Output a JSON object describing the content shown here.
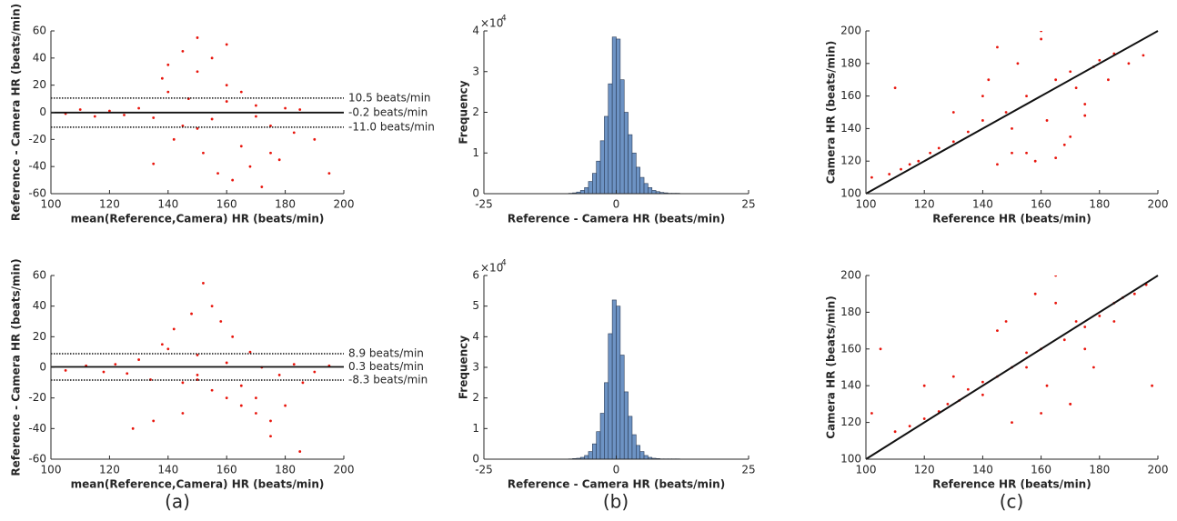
{
  "captions": [
    "(a)",
    "(b)",
    "(c)"
  ],
  "chart_data": [
    {
      "type": "scatter",
      "xlabel": "mean(Reference,Camera) HR (beats/min)",
      "ylabel": "Reference - Camera HR (beats/min)",
      "color": "#e8150c",
      "xlim": [
        100,
        200
      ],
      "ylim": [
        -60,
        60
      ],
      "xticks": [
        100,
        120,
        140,
        160,
        180,
        200
      ],
      "yticks": [
        -60,
        -40,
        -20,
        0,
        20,
        40,
        60
      ],
      "x": [
        105,
        110,
        115,
        120,
        125,
        130,
        135,
        138,
        140,
        142,
        145,
        147,
        150,
        152,
        155,
        157,
        160,
        162,
        165,
        168,
        170,
        172,
        175,
        178,
        180,
        183,
        185,
        190,
        195,
        135,
        145,
        150,
        155,
        160,
        165,
        170,
        140,
        150,
        160,
        175
      ],
      "y": [
        -1,
        2,
        -3,
        1,
        -2,
        3,
        -4,
        25,
        35,
        -20,
        45,
        10,
        55,
        -30,
        40,
        -45,
        20,
        -50,
        15,
        -40,
        5,
        -55,
        -10,
        -35,
        3,
        -15,
        2,
        -20,
        -45,
        -38,
        -10,
        30,
        -5,
        8,
        -25,
        -3,
        15,
        -12,
        50,
        -30
      ],
      "reference_lines": [
        {
          "value": 10.5,
          "label": "10.5  beats/min",
          "style": "dotted"
        },
        {
          "value": -0.2,
          "label": "-0.2  beats/min",
          "style": "solid"
        },
        {
          "value": -11.0,
          "label": "-11.0  beats/min",
          "style": "dotted"
        }
      ]
    },
    {
      "type": "histogram",
      "xlabel": "Reference - Camera HR (beats/min)",
      "ylabel": "Frequency",
      "color": "#6d93c4",
      "y_multiplier": "×10",
      "y_multiplier_exponent": "4",
      "xlim": [
        -25,
        25
      ],
      "ylim": [
        0,
        4
      ],
      "xticks": [
        -25,
        0,
        25
      ],
      "yticks": [
        0,
        1,
        2,
        3,
        4
      ],
      "bins": [
        -9,
        -8.25,
        -7.5,
        -6.75,
        -6,
        -5.25,
        -4.5,
        -3.75,
        -3,
        -2.25,
        -1.5,
        -0.75,
        0,
        0.75,
        1.5,
        2.25,
        3,
        3.75,
        4.5,
        5.25,
        6,
        6.75,
        7.5,
        8.25,
        9,
        9.75,
        10.5,
        11.25,
        12
      ],
      "counts": [
        0.01,
        0.02,
        0.04,
        0.08,
        0.15,
        0.3,
        0.5,
        0.8,
        1.3,
        1.9,
        2.7,
        3.85,
        3.8,
        2.8,
        2.0,
        1.45,
        1.0,
        0.65,
        0.4,
        0.25,
        0.15,
        0.08,
        0.05,
        0.03,
        0.02,
        0.01,
        0.01,
        0.01
      ]
    },
    {
      "type": "scatter",
      "xlabel": "Reference HR (beats/min)",
      "ylabel": "Camera HR (beats/min)",
      "color": "#e8150c",
      "identity_line": true,
      "xlim": [
        100,
        200
      ],
      "ylim": [
        100,
        200
      ],
      "xticks": [
        100,
        120,
        140,
        160,
        180,
        200
      ],
      "yticks": [
        100,
        120,
        140,
        160,
        180,
        200
      ],
      "x": [
        102,
        108,
        112,
        115,
        118,
        122,
        125,
        130,
        135,
        140,
        142,
        145,
        148,
        150,
        152,
        155,
        158,
        160,
        162,
        165,
        168,
        170,
        172,
        175,
        178,
        180,
        183,
        185,
        190,
        195,
        110,
        130,
        150,
        160,
        170,
        145,
        155,
        165,
        140,
        175
      ],
      "y": [
        110,
        112,
        115,
        118,
        120,
        125,
        128,
        132,
        138,
        145,
        170,
        190,
        150,
        125,
        180,
        160,
        120,
        195,
        145,
        170,
        130,
        175,
        165,
        155,
        178,
        182,
        170,
        186,
        180,
        185,
        165,
        150,
        140,
        200,
        135,
        118,
        125,
        122,
        160,
        148
      ]
    },
    {
      "type": "scatter",
      "xlabel": "mean(Reference,Camera) HR (beats/min)",
      "ylabel": "Reference - Camera HR (beats/min)",
      "color": "#e8150c",
      "xlim": [
        100,
        200
      ],
      "ylim": [
        -60,
        60
      ],
      "xticks": [
        100,
        120,
        140,
        160,
        180,
        200
      ],
      "yticks": [
        -60,
        -40,
        -20,
        0,
        20,
        40,
        60
      ],
      "x": [
        105,
        112,
        118,
        122,
        126,
        130,
        134,
        138,
        142,
        145,
        148,
        150,
        152,
        155,
        158,
        160,
        162,
        165,
        168,
        170,
        172,
        175,
        178,
        180,
        183,
        186,
        190,
        195,
        128,
        140,
        150,
        155,
        160,
        165,
        170,
        145,
        135,
        175,
        185,
        150
      ],
      "y": [
        -2,
        1,
        -3,
        2,
        -4,
        5,
        -8,
        15,
        25,
        -10,
        35,
        8,
        55,
        -15,
        30,
        -20,
        20,
        -25,
        10,
        -30,
        0,
        -35,
        -5,
        -25,
        2,
        -10,
        -3,
        1,
        -40,
        12,
        -5,
        40,
        3,
        -12,
        -20,
        -30,
        -35,
        -45,
        -55,
        -8
      ],
      "reference_lines": [
        {
          "value": 8.9,
          "label": "8.9  beats/min",
          "style": "dotted"
        },
        {
          "value": 0.3,
          "label": "0.3  beats/min",
          "style": "solid"
        },
        {
          "value": -8.3,
          "label": "-8.3  beats/min",
          "style": "dotted"
        }
      ]
    },
    {
      "type": "histogram",
      "xlabel": "Reference - Camera HR (beats/min)",
      "ylabel": "Frequency",
      "color": "#6d93c4",
      "y_multiplier": "×10",
      "y_multiplier_exponent": "4",
      "xlim": [
        -25,
        25
      ],
      "ylim": [
        0,
        6
      ],
      "xticks": [
        -25,
        0,
        25
      ],
      "yticks": [
        0,
        1,
        2,
        3,
        4,
        5,
        6
      ],
      "bins": [
        -9,
        -8.25,
        -7.5,
        -6.75,
        -6,
        -5.25,
        -4.5,
        -3.75,
        -3,
        -2.25,
        -1.5,
        -0.75,
        0,
        0.75,
        1.5,
        2.25,
        3,
        3.75,
        4.5,
        5.25,
        6,
        6.75,
        7.5,
        8.25,
        9,
        9.75,
        10.5,
        11.25,
        12
      ],
      "counts": [
        0.01,
        0.02,
        0.03,
        0.06,
        0.12,
        0.25,
        0.5,
        0.9,
        1.5,
        2.5,
        4.1,
        5.2,
        5.0,
        3.4,
        2.2,
        1.4,
        0.8,
        0.45,
        0.25,
        0.12,
        0.06,
        0.03,
        0.02,
        0.01,
        0.01,
        0.01,
        0.01,
        0.01
      ]
    },
    {
      "type": "scatter",
      "xlabel": "Reference HR (beats/min)",
      "ylabel": "Camera HR (beats/min)",
      "color": "#e8150c",
      "identity_line": true,
      "xlim": [
        100,
        200
      ],
      "ylim": [
        100,
        200
      ],
      "xticks": [
        100,
        120,
        140,
        160,
        180,
        200
      ],
      "yticks": [
        100,
        120,
        140,
        160,
        180,
        200
      ],
      "x": [
        102,
        110,
        115,
        120,
        125,
        128,
        132,
        135,
        140,
        145,
        148,
        150,
        155,
        158,
        160,
        162,
        165,
        168,
        170,
        172,
        175,
        178,
        180,
        185,
        188,
        192,
        196,
        198,
        105,
        130,
        150,
        160,
        165,
        170,
        145,
        155,
        175,
        140,
        185,
        120
      ],
      "y": [
        125,
        115,
        118,
        122,
        126,
        130,
        132,
        138,
        142,
        145,
        175,
        150,
        158,
        190,
        160,
        140,
        200,
        165,
        130,
        175,
        172,
        150,
        178,
        185,
        188,
        190,
        195,
        140,
        160,
        145,
        120,
        125,
        185,
        130,
        170,
        150,
        160,
        135,
        175,
        140
      ]
    }
  ]
}
